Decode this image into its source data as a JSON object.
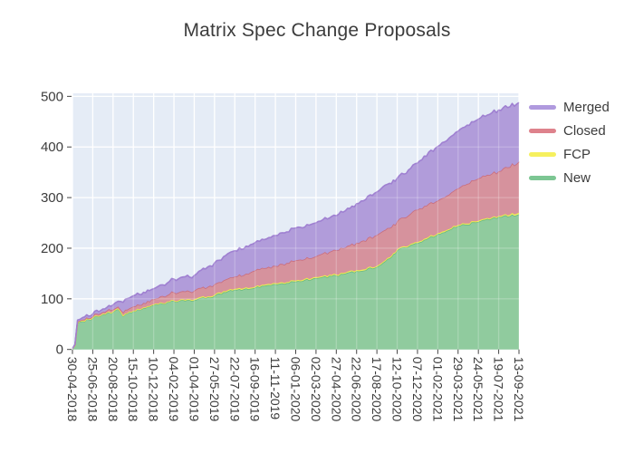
{
  "title": "Matrix Spec Change Proposals",
  "legend": {
    "items": [
      {
        "label": "Merged",
        "color": "#b09ade"
      },
      {
        "label": "Closed",
        "color": "#de828c"
      },
      {
        "label": "FCP",
        "color": "#f6f05e"
      },
      {
        "label": "New",
        "color": "#7cc693"
      }
    ]
  },
  "chart_data": {
    "type": "area",
    "stacked": true,
    "title": "Matrix Spec Change Proposals",
    "legend_position": "right",
    "grid": true,
    "plot_bg": "#e5ecf6",
    "grid_color": "#ffffff",
    "text_color": "#3c3c3c",
    "tick_color": "#444444",
    "ylim": [
      0,
      506
    ],
    "y_ticks": [
      0,
      100,
      200,
      300,
      400,
      500
    ],
    "x_range": [
      "30-04-2018",
      "13-09-2021"
    ],
    "x_tick_labels": [
      "30-04-2018",
      "25-06-2018",
      "20-08-2018",
      "15-10-2018",
      "10-12-2018",
      "04-02-2019",
      "01-04-2019",
      "27-05-2019",
      "22-07-2019",
      "16-09-2019",
      "11-11-2019",
      "06-01-2020",
      "02-03-2020",
      "27-04-2020",
      "22-06-2020",
      "17-08-2020",
      "12-10-2020",
      "07-12-2020",
      "01-02-2021",
      "29-03-2021",
      "24-05-2021",
      "19-07-2021",
      "13-09-2021"
    ],
    "dates": [
      "30-04-2018",
      "07-05-2018",
      "14-05-2018",
      "28-05-2018",
      "25-06-2018",
      "23-07-2018",
      "20-08-2018",
      "03-09-2018",
      "17-09-2018",
      "15-10-2018",
      "12-11-2018",
      "10-12-2018",
      "04-02-2019",
      "01-04-2019",
      "27-05-2019",
      "22-07-2019",
      "16-09-2019",
      "11-11-2019",
      "06-01-2020",
      "02-03-2020",
      "27-04-2020",
      "22-06-2020",
      "17-08-2020",
      "21-09-2020",
      "12-10-2020",
      "07-12-2020",
      "01-02-2021",
      "29-03-2021",
      "24-05-2021",
      "19-07-2021",
      "13-09-2021"
    ],
    "series": [
      {
        "name": "New",
        "fill": "#90cb9e",
        "line": "#67b97f",
        "values": [
          2,
          8,
          52,
          56,
          62,
          70,
          74,
          80,
          66,
          76,
          82,
          88,
          96,
          97,
          106,
          118,
          122,
          129,
          134,
          141,
          146,
          155,
          163,
          180,
          196,
          210,
          228,
          244,
          252,
          262,
          267
        ]
      },
      {
        "name": "FCP",
        "fill": "#f8f272",
        "line": "#efe84b",
        "values": [
          0,
          0,
          1,
          1,
          1,
          1,
          1,
          1,
          1,
          1,
          1,
          1,
          1,
          2,
          2,
          2,
          2,
          2,
          2,
          2,
          2,
          2,
          2,
          2,
          2,
          2,
          2,
          2,
          2,
          2,
          3
        ]
      },
      {
        "name": "Closed",
        "fill": "#d6929d",
        "line": "#ca6d7c",
        "values": [
          0,
          1,
          2,
          2,
          2,
          3,
          4,
          4,
          6,
          8,
          9,
          10,
          16,
          17,
          21,
          24,
          32,
          34,
          40,
          41,
          48,
          54,
          61,
          58,
          55,
          64,
          64,
          72,
          84,
          88,
          101
        ]
      },
      {
        "name": "Merged",
        "fill": "#b19cda",
        "line": "#9f80d1",
        "values": [
          0,
          1,
          3,
          4,
          5,
          6,
          9,
          10,
          20,
          21,
          21,
          21,
          26,
          30,
          42,
          51,
          55,
          60,
          64,
          66,
          68,
          77,
          85,
          88,
          85,
          92,
          107,
          113,
          117,
          121,
          117
        ]
      }
    ]
  }
}
